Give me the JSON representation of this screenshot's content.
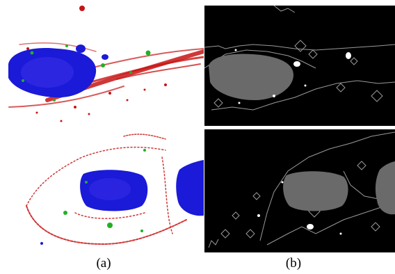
{
  "captions": {
    "left": "(a)",
    "right": "(b)"
  },
  "colors": {
    "nucleus": "#1a1ad8",
    "nucleus_highlight": "#3a2ee8",
    "membrane": "#c81414",
    "granule": "#22b022",
    "mask_background": "#000000",
    "mask_region": "#6a6a6a",
    "mask_outline": "#9a9a9a",
    "mask_blob": "#ffffff"
  }
}
